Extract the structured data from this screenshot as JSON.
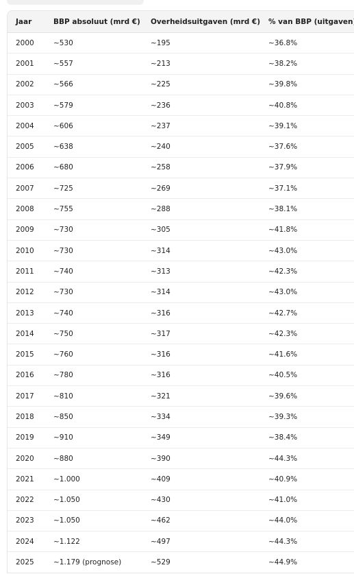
{
  "table": {
    "header": [
      "Jaar",
      "BBP absoluut (mrd €)",
      "Overheidsuitgaven (mrd €)",
      "% van BBP (uitgaven)"
    ],
    "rows": [
      [
        "2000",
        "~530",
        "~195",
        "~36.8%"
      ],
      [
        "2001",
        "~557",
        "~213",
        "~38.2%"
      ],
      [
        "2002",
        "~566",
        "~225",
        "~39.8%"
      ],
      [
        "2003",
        "~579",
        "~236",
        "~40.8%"
      ],
      [
        "2004",
        "~606",
        "~237",
        "~39.1%"
      ],
      [
        "2005",
        "~638",
        "~240",
        "~37.6%"
      ],
      [
        "2006",
        "~680",
        "~258",
        "~37.9%"
      ],
      [
        "2007",
        "~725",
        "~269",
        "~37.1%"
      ],
      [
        "2008",
        "~755",
        "~288",
        "~38.1%"
      ],
      [
        "2009",
        "~730",
        "~305",
        "~41.8%"
      ],
      [
        "2010",
        "~730",
        "~314",
        "~43.0%"
      ],
      [
        "2011",
        "~740",
        "~313",
        "~42.3%"
      ],
      [
        "2012",
        "~730",
        "~314",
        "~43.0%"
      ],
      [
        "2013",
        "~740",
        "~316",
        "~42.7%"
      ],
      [
        "2014",
        "~750",
        "~317",
        "~42.3%"
      ],
      [
        "2015",
        "~760",
        "~316",
        "~41.6%"
      ],
      [
        "2016",
        "~780",
        "~316",
        "~40.5%"
      ],
      [
        "2017",
        "~810",
        "~321",
        "~39.6%"
      ],
      [
        "2018",
        "~850",
        "~334",
        "~39.3%"
      ],
      [
        "2019",
        "~910",
        "~349",
        "~38.4%"
      ],
      [
        "2020",
        "~880",
        "~390",
        "~44.3%"
      ],
      [
        "2021",
        "~1.000",
        "~409",
        "~40.9%"
      ],
      [
        "2022",
        "~1.050",
        "~430",
        "~41.0%"
      ],
      [
        "2023",
        "~1.050",
        "~462",
        "~44.0%"
      ],
      [
        "2024",
        "~1.122",
        "~497",
        "~44.3%"
      ],
      [
        "2025",
        "~1.179 (prognose)",
        "~529",
        "~44.9%"
      ]
    ]
  }
}
